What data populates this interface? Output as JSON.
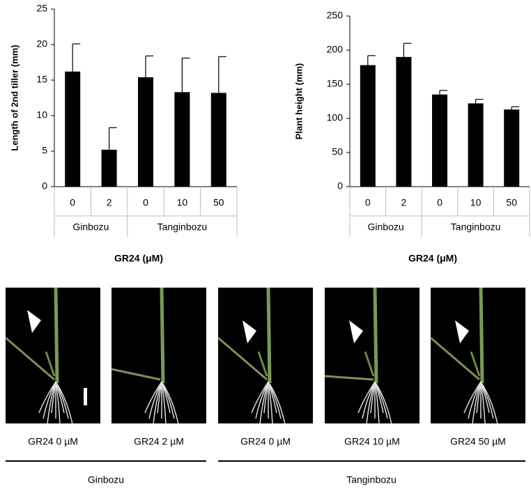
{
  "chart_data": [
    {
      "type": "bar",
      "y_label": "Length of 2nd tiller (mm)",
      "x_label": "GR24 (μM)",
      "categories": [
        "0",
        "2",
        "0",
        "10",
        "50"
      ],
      "category_groups": [
        "Ginbozu",
        "Ginbozu",
        "Tanginbozu",
        "Tanginbozu",
        "Tanginbozu"
      ],
      "values": [
        16.2,
        5.2,
        15.4,
        13.3,
        13.2
      ],
      "errors": [
        3.9,
        3.1,
        3.0,
        4.8,
        5.1
      ],
      "color": "#000000",
      "ylim": [
        0,
        25
      ],
      "yticks": [
        0,
        5,
        10,
        15,
        20,
        25
      ],
      "grid": false
    },
    {
      "type": "bar",
      "y_label": "Plant height (mm)",
      "x_label": "GR24 (μM)",
      "categories": [
        "0",
        "2",
        "0",
        "10",
        "50"
      ],
      "category_groups": [
        "Ginbozu",
        "Ginbozu",
        "Tanginbozu",
        "Tanginbozu",
        "Tanginbozu"
      ],
      "values": [
        178,
        190,
        135,
        122,
        113
      ],
      "errors": [
        14,
        20,
        6,
        6,
        4
      ],
      "color": "#000000",
      "ylim": [
        0,
        250
      ],
      "yticks": [
        0,
        50,
        100,
        150,
        200,
        250
      ],
      "grid": false
    }
  ],
  "photos": {
    "captions": [
      "GR24 0 µM",
      "GR24 2 µM",
      "GR24 0 µM",
      "GR24 10 µM",
      "GR24 50 µM"
    ],
    "groups": [
      "Ginbozu",
      "Tanginbozu"
    ]
  }
}
